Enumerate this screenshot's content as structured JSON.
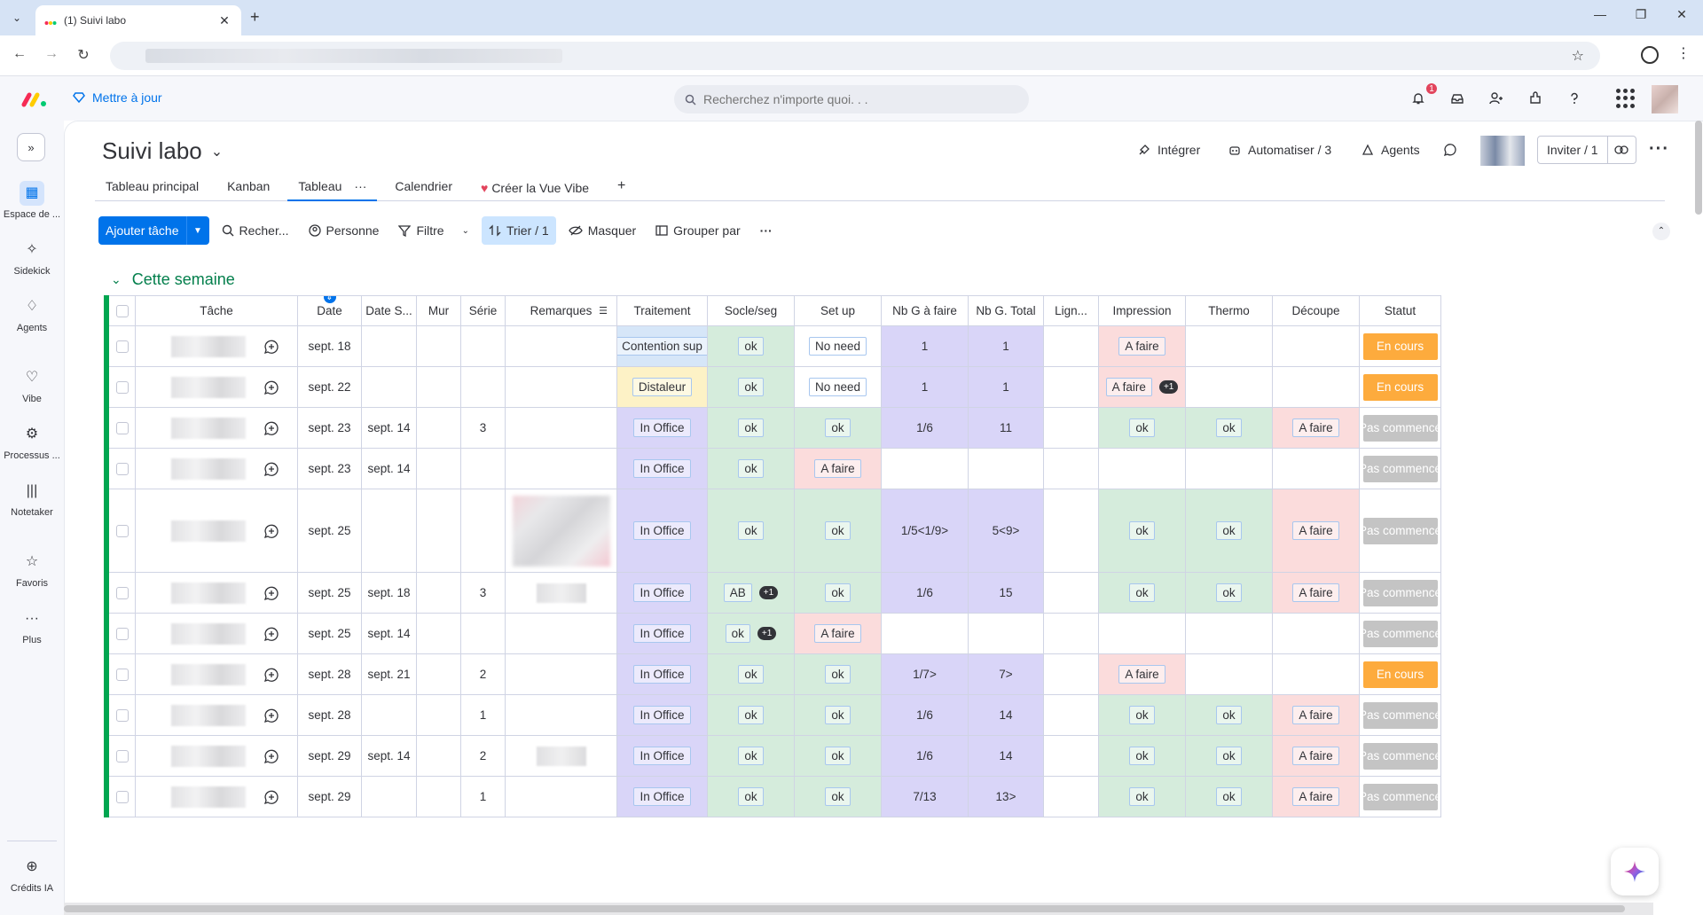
{
  "browser": {
    "tab_title": "(1) Suivi labo",
    "close_glyph": "✕",
    "new_tab_glyph": "+",
    "dropdown_glyph": "⌄",
    "win_min": "—",
    "win_restore": "❐",
    "win_close": "✕",
    "back": "←",
    "forward": "→",
    "reload": "↻",
    "star": "☆",
    "more": "⋮"
  },
  "topbar": {
    "upgrade_label": "Mettre à jour",
    "search_placeholder": "Recherchez n'importe quoi. . .",
    "notification_count": "1"
  },
  "rail": {
    "expand_glyph": "»",
    "items": [
      {
        "label": "Espace de ...",
        "icon": "grid-icon",
        "glyph": "▦",
        "active": true
      },
      {
        "label": "Sidekick",
        "icon": "sparkle-icon",
        "glyph": "✧"
      },
      {
        "label": "Agents",
        "icon": "agents-icon",
        "glyph": "♢"
      },
      {
        "label": "Vibe",
        "icon": "heart-icon",
        "glyph": "♡"
      },
      {
        "label": "Processus ...",
        "icon": "process-icon",
        "glyph": "⚙"
      },
      {
        "label": "Notetaker",
        "icon": "waveform-icon",
        "glyph": "|||"
      },
      {
        "label": "Favoris",
        "icon": "star-icon",
        "glyph": "☆"
      },
      {
        "label": "Plus",
        "icon": "more-icon",
        "glyph": "···"
      }
    ],
    "credits_label": "Crédits IA",
    "credits_glyph": "⊕"
  },
  "board": {
    "title": "Suivi labo",
    "title_chevron": "⌄",
    "integrate": "Intégrer",
    "automate": "Automatiser / 3",
    "agents": "Agents",
    "invite": "Inviter / 1",
    "link_glyph": "⊂⊃",
    "more_glyph": "···",
    "views": [
      "Tableau principal",
      "Kanban",
      "Tableau",
      "Calendrier",
      "Créer la Vue Vibe"
    ],
    "view_more": "···",
    "view_add": "+",
    "collapse_glyph": "⌃"
  },
  "toolbar": {
    "add_task": "Ajouter tâche",
    "search": "Recher...",
    "person": "Personne",
    "filter": "Filtre",
    "sort": "Trier / 1",
    "hide": "Masquer",
    "group_by": "Grouper par",
    "more": "···"
  },
  "group": {
    "title": "Cette semaine",
    "chevron": "⌄"
  },
  "table": {
    "headers": [
      "Tâche",
      "Date",
      "Date S...",
      "Mur",
      "Série",
      "Remarques",
      "Traitement",
      "Socle/seg",
      "Set up",
      "Nb G à faire",
      "Nb G. Total",
      "Lign...",
      "Impression",
      "Thermo",
      "Découpe",
      "Statut"
    ],
    "date_sort_glyph": "⇕",
    "plus_badge": "+1",
    "rows": [
      {
        "date": "sept. 18",
        "date_s": "",
        "serie": "",
        "rem": "",
        "traitement": "Contention sup",
        "socle": "ok",
        "socle_extra": false,
        "setup": "No need",
        "nbg": "1",
        "nbt": "1",
        "impression": "A faire",
        "impression_extra": false,
        "thermo": "",
        "decoupe": "",
        "statut": "En cours"
      },
      {
        "date": "sept. 22",
        "date_s": "",
        "serie": "",
        "rem": "",
        "traitement": "Distaleur",
        "socle": "ok",
        "socle_extra": false,
        "setup": "No need",
        "nbg": "1",
        "nbt": "1",
        "impression": "A faire",
        "impression_extra": true,
        "thermo": "",
        "decoupe": "",
        "statut": "En cours"
      },
      {
        "date": "sept. 23",
        "date_s": "sept. 14",
        "serie": "3",
        "rem": "",
        "traitement": "In Office",
        "socle": "ok",
        "socle_extra": false,
        "setup": "ok",
        "nbg": "1/6",
        "nbt": "11",
        "impression": "ok",
        "impression_extra": false,
        "thermo": "ok",
        "decoupe": "A faire",
        "statut": "Pas commencé"
      },
      {
        "date": "sept. 23",
        "date_s": "sept. 14",
        "serie": "",
        "rem": "",
        "traitement": "In Office",
        "socle": "ok",
        "socle_extra": false,
        "setup": "A faire",
        "nbg": "",
        "nbt": "",
        "impression": "",
        "impression_extra": false,
        "thermo": "",
        "decoupe": "",
        "statut": "Pas commencé"
      },
      {
        "date": "sept. 25",
        "date_s": "",
        "serie": "",
        "rem": "img",
        "traitement": "In Office",
        "socle": "ok",
        "socle_extra": false,
        "setup": "ok",
        "nbg": "1/5<1/9>",
        "nbt": "5<9>",
        "impression": "ok",
        "impression_extra": false,
        "thermo": "ok",
        "decoupe": "A faire",
        "statut": "Pas commencé"
      },
      {
        "date": "sept. 25",
        "date_s": "sept. 18",
        "serie": "3",
        "rem": "small",
        "traitement": "In Office",
        "socle": "AB",
        "socle_extra": true,
        "setup": "ok",
        "nbg": "1/6",
        "nbt": "15",
        "impression": "ok",
        "impression_extra": false,
        "thermo": "ok",
        "decoupe": "A faire",
        "statut": "Pas commencé"
      },
      {
        "date": "sept. 25",
        "date_s": "sept. 14",
        "serie": "",
        "rem": "",
        "traitement": "In Office",
        "socle": "ok",
        "socle_extra": true,
        "setup": "A faire",
        "nbg": "",
        "nbt": "",
        "impression": "",
        "impression_extra": false,
        "thermo": "",
        "decoupe": "",
        "statut": "Pas commencé"
      },
      {
        "date": "sept. 28",
        "date_s": "sept. 21",
        "serie": "2",
        "rem": "",
        "traitement": "In Office",
        "socle": "ok",
        "socle_extra": false,
        "setup": "ok",
        "nbg": "1/7>",
        "nbt": "7>",
        "impression": "A faire",
        "impression_extra": false,
        "thermo": "",
        "decoupe": "",
        "statut": "En cours"
      },
      {
        "date": "sept. 28",
        "date_s": "",
        "serie": "1",
        "rem": "",
        "traitement": "In Office",
        "socle": "ok",
        "socle_extra": false,
        "setup": "ok",
        "nbg": "1/6",
        "nbt": "14",
        "impression": "ok",
        "impression_extra": false,
        "thermo": "ok",
        "decoupe": "A faire",
        "statut": "Pas commencé"
      },
      {
        "date": "sept. 29",
        "date_s": "sept. 14",
        "serie": "2",
        "rem": "small",
        "traitement": "In Office",
        "socle": "ok",
        "socle_extra": false,
        "setup": "ok",
        "nbg": "1/6",
        "nbt": "14",
        "impression": "ok",
        "impression_extra": false,
        "thermo": "ok",
        "decoupe": "A faire",
        "statut": "Pas commencé"
      },
      {
        "date": "sept. 29",
        "date_s": "",
        "serie": "1",
        "rem": "",
        "traitement": "In Office",
        "socle": "ok",
        "socle_extra": false,
        "setup": "ok",
        "nbg": "7/13",
        "nbt": "13>",
        "impression": "ok",
        "impression_extra": false,
        "thermo": "ok",
        "decoupe": "A faire",
        "statut": "Pas commencé"
      }
    ]
  },
  "colors": {
    "primary": "#0073ea",
    "group_green": "#00a650",
    "status_orange": "#fdab3d",
    "status_grey": "#c4c4c4"
  }
}
